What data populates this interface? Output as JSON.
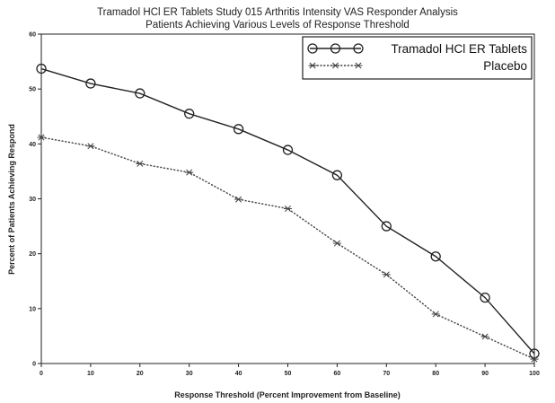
{
  "chart_data": {
    "type": "line",
    "title": [
      "Tramadol HCl ER Tablets Study 015 Arthritis Intensity VAS Responder Analysis",
      "Patients Achieving Various Levels of Response Threshold"
    ],
    "xlabel": "Response Threshold (Percent Improvement from Baseline)",
    "ylabel": "Percent of Patients Achieving Respond",
    "x": [
      0,
      10,
      20,
      30,
      40,
      50,
      60,
      70,
      80,
      90,
      100
    ],
    "xlim": [
      0,
      100
    ],
    "ylim": [
      0,
      60
    ],
    "x_ticks": [
      0,
      10,
      20,
      30,
      40,
      50,
      60,
      70,
      80,
      90,
      100
    ],
    "y_ticks": [
      0,
      10,
      20,
      30,
      40,
      50,
      60
    ],
    "grid": false,
    "legend": "top-right",
    "series": [
      {
        "name": "Tramadol HCl ER Tablets",
        "values": [
          53.7,
          51.0,
          49.2,
          45.5,
          42.7,
          38.9,
          34.3,
          25.0,
          19.5,
          12.0,
          1.8
        ],
        "marker": "circle",
        "line_style": "solid",
        "color": "#222222"
      },
      {
        "name": "Placebo",
        "values": [
          41.2,
          39.6,
          36.4,
          34.8,
          29.9,
          28.2,
          21.9,
          16.2,
          9.0,
          4.9,
          0.8
        ],
        "marker": "asterisk",
        "line_style": "dotted",
        "color": "#444444"
      }
    ]
  }
}
